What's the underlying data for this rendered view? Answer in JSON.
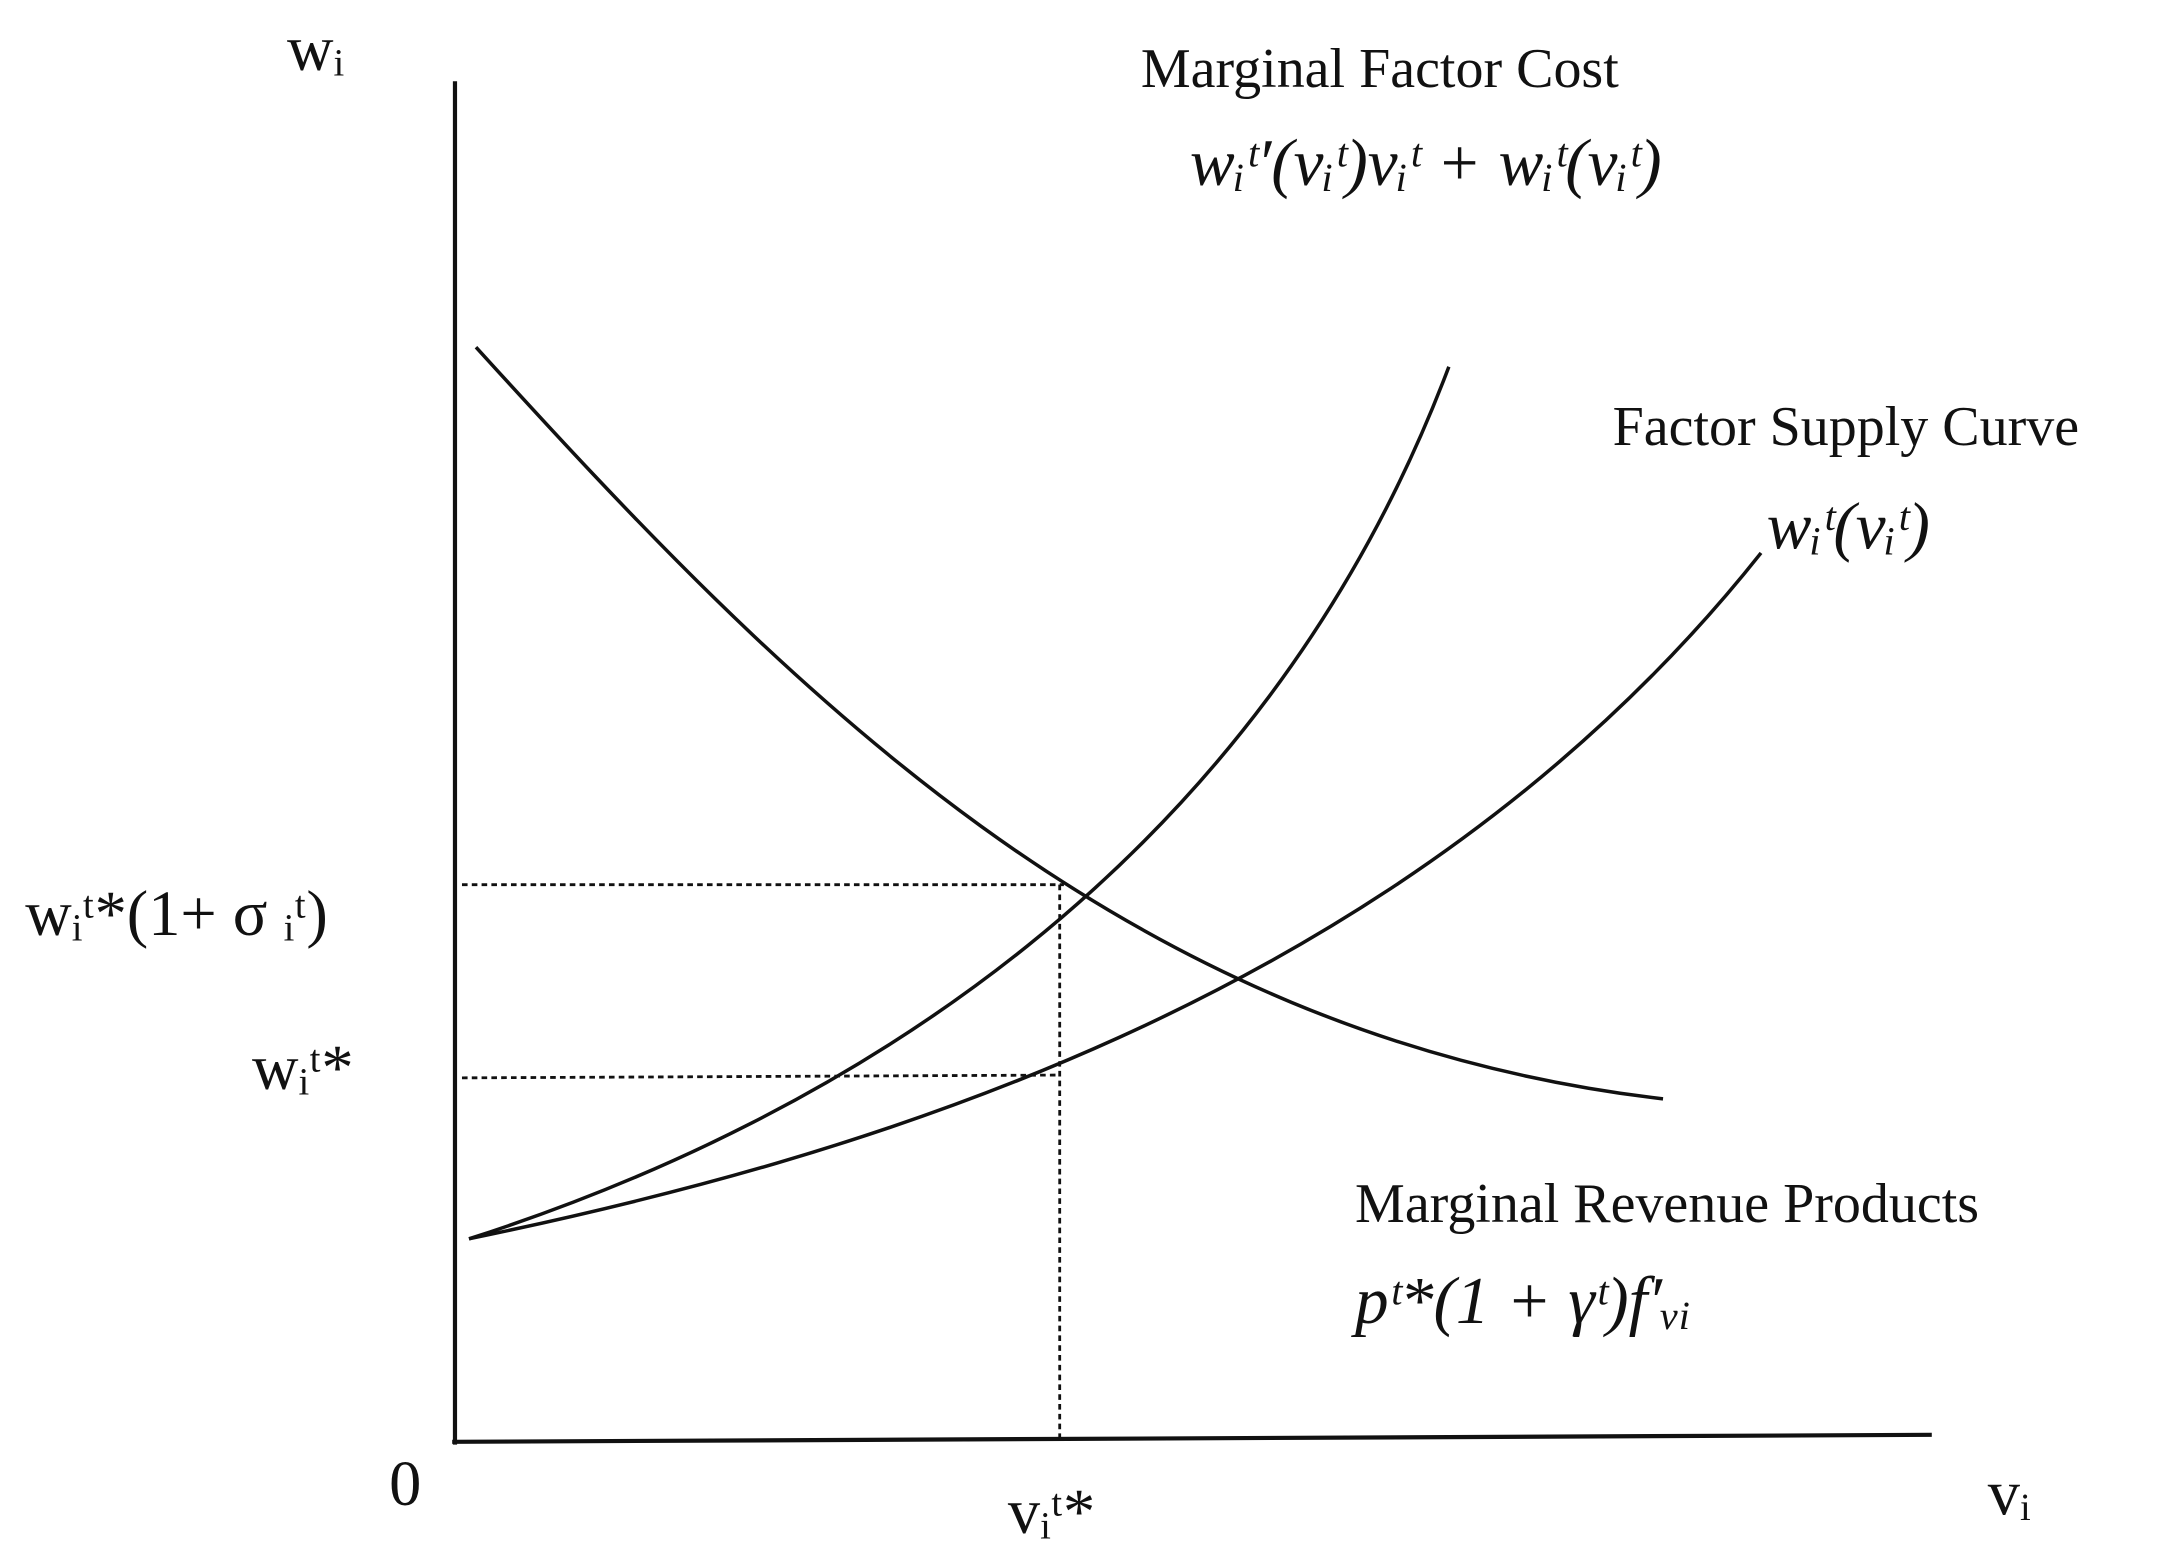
{
  "axes": {
    "y_label": "wᵢ",
    "x_label": "vᵢ",
    "origin": "0"
  },
  "curves": [
    {
      "name": "Marginal Factor Cost",
      "formula": "wᵢᵗ′(vᵢᵗ)vᵢᵗ + wᵢᵗ(vᵢᵗ)"
    },
    {
      "name": "Factor Supply Curve",
      "formula": "wᵢᵗ(vᵢᵗ)"
    },
    {
      "name": "Marginal Revenue Products",
      "formula": "pᵗ*(1 + γᵗ)f′ᵥᵢ"
    }
  ],
  "levels": {
    "upper": "wᵢᵗ*(1+ σ ᵢᵗ)",
    "lower": "wᵢᵗ*",
    "quantity": "vᵢᵗ*"
  }
}
